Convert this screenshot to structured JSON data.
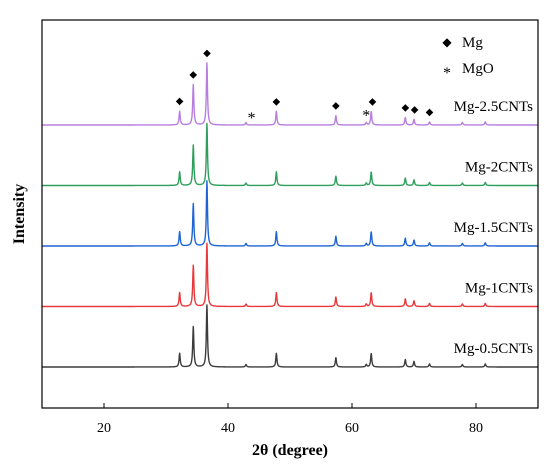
{
  "chart_data": {
    "type": "line",
    "xlabel": "2θ (degree)",
    "ylabel": "Intensity",
    "xlim": [
      10,
      90
    ],
    "xticks": [
      "20",
      "40",
      "60",
      "80"
    ],
    "xtick_values": [
      20,
      40,
      60,
      80
    ],
    "grid": false,
    "legend": {
      "position": "top-right",
      "items": [
        {
          "symbol": "◆",
          "label": "Mg"
        },
        {
          "symbol": "*",
          "label": "MgO"
        }
      ]
    },
    "peaks": {
      "mg_positions": [
        32.2,
        34.4,
        36.6,
        47.8,
        57.4,
        63.1,
        68.6,
        70.0,
        72.5,
        77.8,
        81.5
      ],
      "mg_heights": [
        0.22,
        0.65,
        1.0,
        0.22,
        0.15,
        0.22,
        0.12,
        0.09,
        0.05,
        0.04,
        0.05
      ],
      "mgo_positions": [
        42.9,
        62.3
      ],
      "mgo_heights": [
        0.04,
        0.04
      ]
    },
    "series": [
      {
        "name": "Mg-0.5CNTs",
        "color": "#3c3c3c",
        "baseline_intensity": 0,
        "scale": 1.0
      },
      {
        "name": "Mg-1CNTs",
        "color": "#e8383b",
        "baseline_intensity": 1,
        "scale": 1.02
      },
      {
        "name": "Mg-1.5CNTs",
        "color": "#1f64d6",
        "baseline_intensity": 2,
        "scale": 1.05
      },
      {
        "name": "Mg-2CNTs",
        "color": "#2e9e5b",
        "baseline_intensity": 3,
        "scale": 1.0
      },
      {
        "name": "Mg-2.5CNTs",
        "color": "#b77ee0",
        "baseline_intensity": 4,
        "scale": 1.0
      }
    ],
    "annotations": [
      {
        "symbol": "◆",
        "x": 32.2,
        "on_series": "Mg-2.5CNTs"
      },
      {
        "symbol": "◆",
        "x": 34.4,
        "on_series": "Mg-2.5CNTs"
      },
      {
        "symbol": "◆",
        "x": 36.6,
        "on_series": "Mg-2.5CNTs"
      },
      {
        "symbol": "*",
        "x": 43.8,
        "on_series": "Mg-2.5CNTs"
      },
      {
        "symbol": "◆",
        "x": 47.8,
        "on_series": "Mg-2.5CNTs"
      },
      {
        "symbol": "◆",
        "x": 57.4,
        "on_series": "Mg-2.5CNTs"
      },
      {
        "symbol": "*",
        "x": 62.3,
        "on_series": "Mg-2.5CNTs"
      },
      {
        "symbol": "◆",
        "x": 63.3,
        "on_series": "Mg-2.5CNTs"
      },
      {
        "symbol": "◆",
        "x": 68.6,
        "on_series": "Mg-2.5CNTs"
      },
      {
        "symbol": "◆",
        "x": 70.1,
        "on_series": "Mg-2.5CNTs"
      },
      {
        "symbol": "◆",
        "x": 72.5,
        "on_series": "Mg-2.5CNTs"
      }
    ]
  }
}
